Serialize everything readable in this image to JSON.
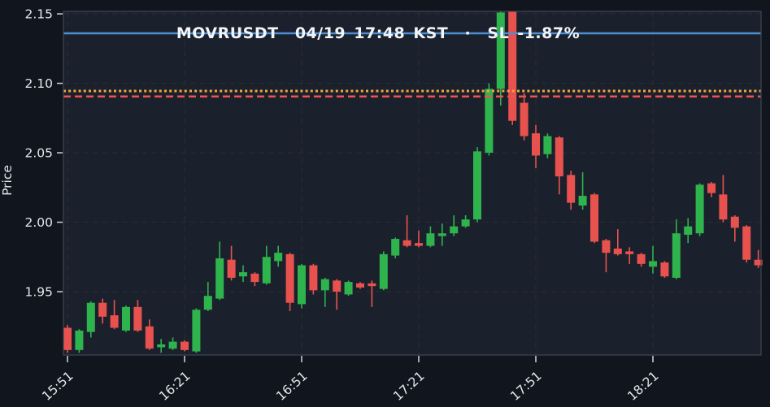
{
  "chart_data": {
    "type": "candlestick",
    "title": "MOVRUSDT  04/19 17:48 KST  ·  SL -1.87%",
    "ylabel": "Price",
    "grid": true,
    "legend": "none",
    "ylim": [
      1.9044,
      2.1518
    ],
    "y_ticks": [
      "2.15",
      "2.10",
      "2.05",
      "2.00",
      "1.95"
    ],
    "y_tick_values": [
      2.15,
      2.1,
      2.05,
      2.0,
      1.95
    ],
    "x_ticks": [
      {
        "label": "15:51",
        "index": 0
      },
      {
        "label": "16:21",
        "index": 10
      },
      {
        "label": "16:51",
        "index": 20
      },
      {
        "label": "17:21",
        "index": 30
      },
      {
        "label": "17:51",
        "index": 40
      },
      {
        "label": "18:21",
        "index": 50
      }
    ],
    "hlines": [
      {
        "name": "price-line-blue-solid",
        "price": 2.136,
        "style": "solid",
        "color": "#4d8ed3",
        "width": 2.5
      },
      {
        "name": "price-line-orange-dotted",
        "price": 2.0945,
        "style": "dotted",
        "color": "#f0a73d",
        "width": 3
      },
      {
        "name": "price-line-red-dashed",
        "price": 2.0905,
        "style": "dashed",
        "color": "#ef5350",
        "width": 2.5
      }
    ],
    "colors": {
      "up": "#2eb34d",
      "down": "#e8524e",
      "plot_bg": "#1b212c",
      "outer_bg": "#11151d",
      "gridline": "#262b35",
      "spine": "#3e4554",
      "tick": "#d0d4db",
      "text": "#e4e7ec"
    },
    "candles_ohlc": [
      [
        1.924,
        1.926,
        1.906,
        1.908
      ],
      [
        1.908,
        1.923,
        1.906,
        1.922
      ],
      [
        1.921,
        1.943,
        1.917,
        1.942
      ],
      [
        1.942,
        1.945,
        1.927,
        1.932
      ],
      [
        1.933,
        1.944,
        1.923,
        1.924
      ],
      [
        1.922,
        1.94,
        1.921,
        1.939
      ],
      [
        1.939,
        1.944,
        1.921,
        1.922
      ],
      [
        1.925,
        1.93,
        1.908,
        1.909
      ],
      [
        1.91,
        1.916,
        1.906,
        1.912
      ],
      [
        1.909,
        1.917,
        1.908,
        1.914
      ],
      [
        1.914,
        1.915,
        1.907,
        1.908
      ],
      [
        1.907,
        1.938,
        1.906,
        1.937
      ],
      [
        1.937,
        1.957,
        1.936,
        1.947
      ],
      [
        1.945,
        1.986,
        1.944,
        1.974
      ],
      [
        1.973,
        1.983,
        1.958,
        1.96
      ],
      [
        1.961,
        1.969,
        1.957,
        1.964
      ],
      [
        1.963,
        1.964,
        1.954,
        1.957
      ],
      [
        1.956,
        1.983,
        1.955,
        1.975
      ],
      [
        1.972,
        1.983,
        1.968,
        1.978
      ],
      [
        1.977,
        1.978,
        1.936,
        1.942
      ],
      [
        1.941,
        1.97,
        1.938,
        1.969
      ],
      [
        1.969,
        1.97,
        1.948,
        1.951
      ],
      [
        1.951,
        1.96,
        1.939,
        1.959
      ],
      [
        1.958,
        1.959,
        1.937,
        1.95
      ],
      [
        1.948,
        1.958,
        1.947,
        1.957
      ],
      [
        1.956,
        1.957,
        1.952,
        1.953
      ],
      [
        1.956,
        1.958,
        1.939,
        1.954
      ],
      [
        1.952,
        1.979,
        1.951,
        1.977
      ],
      [
        1.976,
        1.989,
        1.974,
        1.988
      ],
      [
        1.987,
        2.005,
        1.982,
        1.983
      ],
      [
        1.985,
        1.994,
        1.982,
        1.983
      ],
      [
        1.983,
        1.997,
        1.982,
        1.992
      ],
      [
        1.99,
        1.999,
        1.983,
        1.992
      ],
      [
        1.992,
        2.005,
        1.99,
        1.997
      ],
      [
        1.997,
        2.005,
        1.996,
        2.002
      ],
      [
        2.002,
        2.054,
        2.0,
        2.051
      ],
      [
        2.05,
        2.1,
        2.048,
        2.096
      ],
      [
        2.096,
        2.152,
        2.084,
        2.151
      ],
      [
        2.152,
        2.152,
        2.07,
        2.073
      ],
      [
        2.086,
        2.093,
        2.059,
        2.062
      ],
      [
        2.064,
        2.07,
        2.039,
        2.048
      ],
      [
        2.049,
        2.064,
        2.046,
        2.062
      ],
      [
        2.061,
        2.062,
        2.02,
        2.033
      ],
      [
        2.034,
        2.037,
        2.009,
        2.014
      ],
      [
        2.012,
        2.036,
        2.009,
        2.019
      ],
      [
        2.02,
        2.021,
        1.985,
        1.986
      ],
      [
        1.987,
        1.988,
        1.964,
        1.978
      ],
      [
        1.981,
        1.995,
        1.976,
        1.977
      ],
      [
        1.979,
        1.982,
        1.97,
        1.977
      ],
      [
        1.977,
        1.978,
        1.968,
        1.97
      ],
      [
        1.968,
        1.983,
        1.963,
        1.972
      ],
      [
        1.971,
        1.972,
        1.96,
        1.961
      ],
      [
        1.96,
        2.002,
        1.959,
        1.992
      ],
      [
        1.991,
        2.003,
        1.985,
        1.997
      ],
      [
        1.992,
        2.028,
        1.99,
        2.027
      ],
      [
        2.028,
        2.029,
        2.018,
        2.021
      ],
      [
        2.02,
        2.034,
        2.0,
        2.002
      ],
      [
        2.004,
        2.005,
        1.986,
        1.996
      ],
      [
        1.997,
        1.998,
        1.971,
        1.973
      ],
      [
        1.973,
        1.98,
        1.967,
        1.969
      ]
    ]
  }
}
